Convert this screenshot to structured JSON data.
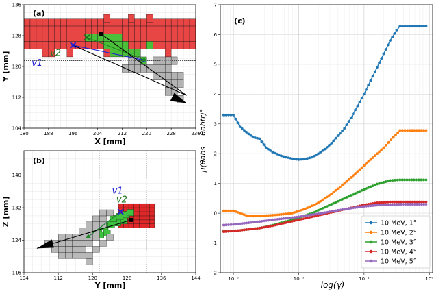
{
  "chart_data": [
    {
      "panel": "(a)",
      "type": "scatter",
      "xlabel": "X [mm]",
      "ylabel": "Y [mm]",
      "xlim": [
        180,
        236
      ],
      "ylim": [
        104,
        136
      ],
      "xticks": [
        180,
        188,
        196,
        204,
        212,
        220,
        228,
        236
      ],
      "yticks": [
        104,
        112,
        120,
        128,
        136
      ],
      "annotations": [
        "v1",
        "v2"
      ],
      "vectors": [
        {
          "name": "v1",
          "color": "#1f1fd6",
          "from": [
            196,
            125.5
          ],
          "to": [
            220,
            121.5
          ]
        },
        {
          "name": "v2",
          "color": "#1f8a1f",
          "from": [
            200.5,
            127.5
          ],
          "to": [
            220,
            121.5
          ]
        },
        {
          "name": "track",
          "color": "#000000",
          "from": [
            196,
            125.5
          ],
          "to": [
            233,
            112.5
          ]
        },
        {
          "name": "track2",
          "color": "#000000",
          "from": [
            205,
            128.5
          ],
          "to": [
            233,
            112.5
          ]
        }
      ],
      "markers": [
        {
          "name": "blue-x",
          "x": 196,
          "y": 125.5,
          "color": "#1f1fd6"
        },
        {
          "name": "green-x",
          "x": 200.5,
          "y": 127.5,
          "color": "#1f6f1f"
        },
        {
          "name": "black-square",
          "x": 205,
          "y": 128.5,
          "color": "#000000"
        }
      ],
      "dotted_hline": 121.5
    },
    {
      "panel": "(b)",
      "type": "scatter",
      "xlabel": "Y [mm]",
      "ylabel": "Z [mm]",
      "xlim": [
        104,
        144
      ],
      "ylim": [
        116,
        146
      ],
      "xticks": [
        104,
        112,
        120,
        128,
        136,
        144
      ],
      "yticks": [
        116,
        124,
        132,
        140
      ],
      "annotations": [
        "v1",
        "v2"
      ],
      "vectors": [
        {
          "name": "v1",
          "color": "#1f1fd6",
          "from": [
            126.5,
            131
          ],
          "to": [
            118.5,
            124.5
          ]
        },
        {
          "name": "v2",
          "color": "#1f8a1f",
          "from": [
            126.5,
            131
          ],
          "to": [
            118.5,
            124.5
          ]
        },
        {
          "name": "track",
          "color": "#000000",
          "from": [
            129,
            129
          ],
          "to": [
            107,
            122
          ]
        }
      ],
      "markers": [
        {
          "name": "blue-x",
          "x": 126.5,
          "y": 131,
          "color": "#1f1fd6"
        },
        {
          "name": "black-square",
          "x": 129,
          "y": 129,
          "color": "#000000"
        }
      ],
      "dotted_vlines": [
        121.5,
        132.5
      ]
    },
    {
      "panel": "(c)",
      "type": "line",
      "xlabel": "log(γ)",
      "ylabel": "μ(θabs − θabtr)°",
      "x_log": true,
      "xlim_log10": [
        -3.2,
        0.05
      ],
      "ylim": [
        -2,
        7
      ],
      "yticks": [
        -2,
        -1,
        0,
        1,
        2,
        3,
        4,
        5,
        6,
        7
      ],
      "xtick_labels": [
        "10⁻³",
        "10⁻²",
        "10⁻¹",
        "10⁰"
      ],
      "legend_position": "lower-right",
      "series": [
        {
          "name": "10 MeV, 1°",
          "color": "#1f77b4",
          "points": [
            [
              -3.15,
              3.3
            ],
            [
              -3.0,
              3.3
            ],
            [
              -2.9,
              2.9
            ],
            [
              -2.8,
              2.72
            ],
            [
              -2.7,
              2.55
            ],
            [
              -2.6,
              2.5
            ],
            [
              -2.5,
              2.2
            ],
            [
              -2.4,
              2.05
            ],
            [
              -2.3,
              1.95
            ],
            [
              -2.2,
              1.88
            ],
            [
              -2.1,
              1.83
            ],
            [
              -2.0,
              1.8
            ],
            [
              -1.9,
              1.82
            ],
            [
              -1.8,
              1.88
            ],
            [
              -1.7,
              2.0
            ],
            [
              -1.6,
              2.15
            ],
            [
              -1.5,
              2.35
            ],
            [
              -1.4,
              2.6
            ],
            [
              -1.3,
              2.85
            ],
            [
              -1.2,
              3.2
            ],
            [
              -1.1,
              3.6
            ],
            [
              -1.0,
              4.0
            ],
            [
              -0.9,
              4.45
            ],
            [
              -0.8,
              4.9
            ],
            [
              -0.7,
              5.35
            ],
            [
              -0.6,
              5.8
            ],
            [
              -0.5,
              6.15
            ],
            [
              -0.45,
              6.28
            ],
            [
              -0.3,
              6.28
            ],
            [
              -0.05,
              6.28
            ]
          ]
        },
        {
          "name": "10 MeV, 2°",
          "color": "#ff7f0e",
          "points": [
            [
              -3.15,
              0.08
            ],
            [
              -3.0,
              0.08
            ],
            [
              -2.9,
              0.0
            ],
            [
              -2.8,
              -0.08
            ],
            [
              -2.7,
              -0.1
            ],
            [
              -2.5,
              -0.08
            ],
            [
              -2.3,
              -0.05
            ],
            [
              -2.1,
              0.0
            ],
            [
              -1.9,
              0.15
            ],
            [
              -1.7,
              0.35
            ],
            [
              -1.5,
              0.65
            ],
            [
              -1.3,
              1.0
            ],
            [
              -1.1,
              1.4
            ],
            [
              -0.9,
              1.8
            ],
            [
              -0.7,
              2.2
            ],
            [
              -0.55,
              2.55
            ],
            [
              -0.45,
              2.78
            ],
            [
              -0.3,
              2.78
            ],
            [
              -0.05,
              2.78
            ]
          ]
        },
        {
          "name": "10 MeV, 3°",
          "color": "#2ca02c",
          "points": [
            [
              -3.15,
              -0.6
            ],
            [
              -3.0,
              -0.6
            ],
            [
              -2.8,
              -0.55
            ],
            [
              -2.6,
              -0.5
            ],
            [
              -2.4,
              -0.4
            ],
            [
              -2.2,
              -0.28
            ],
            [
              -2.0,
              -0.15
            ],
            [
              -1.8,
              0.0
            ],
            [
              -1.6,
              0.2
            ],
            [
              -1.4,
              0.4
            ],
            [
              -1.2,
              0.6
            ],
            [
              -1.0,
              0.8
            ],
            [
              -0.8,
              0.98
            ],
            [
              -0.6,
              1.1
            ],
            [
              -0.45,
              1.12
            ],
            [
              -0.2,
              1.12
            ],
            [
              -0.05,
              1.12
            ]
          ]
        },
        {
          "name": "10 MeV, 4°",
          "color": "#d62728",
          "points": [
            [
              -3.15,
              -0.62
            ],
            [
              -3.0,
              -0.6
            ],
            [
              -2.8,
              -0.55
            ],
            [
              -2.6,
              -0.5
            ],
            [
              -2.4,
              -0.42
            ],
            [
              -2.2,
              -0.32
            ],
            [
              -2.0,
              -0.22
            ],
            [
              -1.8,
              -0.12
            ],
            [
              -1.6,
              -0.02
            ],
            [
              -1.4,
              0.08
            ],
            [
              -1.2,
              0.18
            ],
            [
              -1.0,
              0.28
            ],
            [
              -0.8,
              0.35
            ],
            [
              -0.6,
              0.38
            ],
            [
              -0.4,
              0.38
            ],
            [
              -0.05,
              0.38
            ]
          ]
        },
        {
          "name": "10 MeV, 5°",
          "color": "#9467bd",
          "points": [
            [
              -3.15,
              -0.4
            ],
            [
              -3.0,
              -0.38
            ],
            [
              -2.8,
              -0.33
            ],
            [
              -2.6,
              -0.28
            ],
            [
              -2.4,
              -0.22
            ],
            [
              -2.2,
              -0.17
            ],
            [
              -2.0,
              -0.12
            ],
            [
              -1.8,
              -0.05
            ],
            [
              -1.6,
              0.02
            ],
            [
              -1.4,
              0.1
            ],
            [
              -1.2,
              0.17
            ],
            [
              -1.0,
              0.23
            ],
            [
              -0.8,
              0.27
            ],
            [
              -0.6,
              0.29
            ],
            [
              -0.4,
              0.3
            ],
            [
              -0.05,
              0.3
            ]
          ]
        }
      ]
    }
  ]
}
